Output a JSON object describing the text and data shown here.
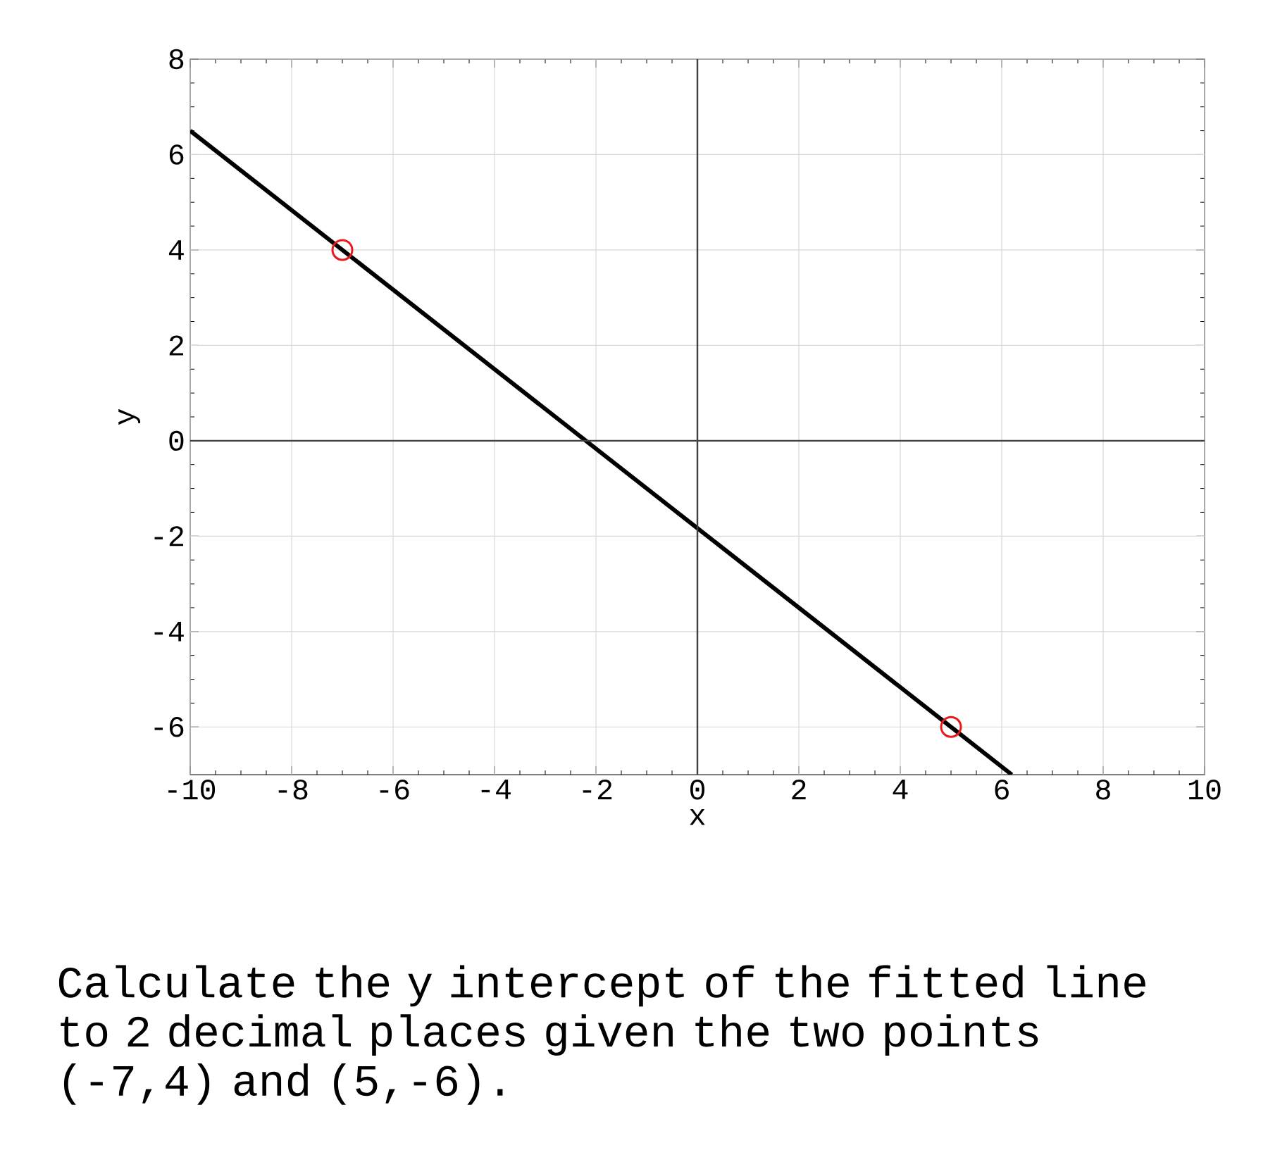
{
  "chart_data": {
    "type": "scatter",
    "xlabel": "x",
    "ylabel": "y",
    "xlim": [
      -10,
      10
    ],
    "ylim": [
      -7,
      8
    ],
    "xticks": [
      -10,
      -8,
      -6,
      -4,
      -2,
      0,
      2,
      4,
      6,
      8,
      10
    ],
    "yticks": [
      -6,
      -4,
      -2,
      0,
      2,
      4,
      6,
      8
    ],
    "grid": true,
    "series": [
      {
        "type": "line",
        "color": "#000000",
        "x": [
          -10,
          6.2
        ],
        "values": [
          6.5,
          -7
        ],
        "marker": "none",
        "line_style": "solid"
      },
      {
        "type": "scatter",
        "color": "#e8191c",
        "x": [
          -7,
          5
        ],
        "values": [
          4,
          -6
        ],
        "marker": "circle"
      }
    ],
    "annotations": [
      "Calculate the y intercept of the fitted line to 2 decimal places given the two points (-7,4) and (5,-6)."
    ]
  }
}
